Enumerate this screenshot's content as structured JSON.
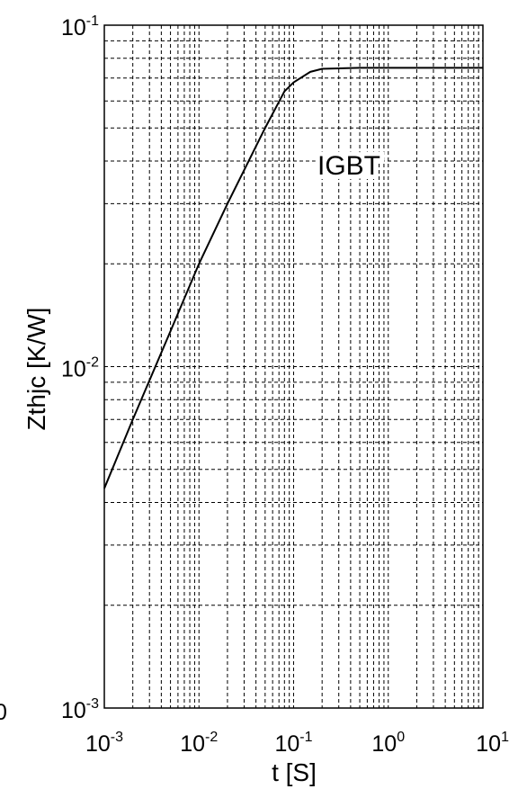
{
  "chart_data": {
    "type": "line",
    "title": "",
    "xlabel": "t [S]",
    "ylabel": "Zthjc [K/W]",
    "xscale": "log",
    "yscale": "log",
    "xlim": [
      0.001,
      10
    ],
    "ylim": [
      0.001,
      0.1
    ],
    "grid": true,
    "grid_style": "dashed",
    "x_tick_labels": [
      {
        "base": "10",
        "exp": "-3"
      },
      {
        "base": "10",
        "exp": "-2"
      },
      {
        "base": "10",
        "exp": "-1"
      },
      {
        "base": "10",
        "exp": "0"
      },
      {
        "base": "10",
        "exp": "1"
      }
    ],
    "y_tick_labels": [
      {
        "base": "10",
        "exp": "-3"
      },
      {
        "base": "10",
        "exp": "-2"
      },
      {
        "base": "10",
        "exp": "-1"
      }
    ],
    "annotation": "IGBT",
    "edge_fragment": "0",
    "series": [
      {
        "color": "#000000",
        "points": [
          [
            0.001,
            0.0044
          ],
          [
            0.002,
            0.007
          ],
          [
            0.005,
            0.0127
          ],
          [
            0.01,
            0.02
          ],
          [
            0.02,
            0.03
          ],
          [
            0.05,
            0.05
          ],
          [
            0.08,
            0.064
          ],
          [
            0.1,
            0.068
          ],
          [
            0.15,
            0.073
          ],
          [
            0.2,
            0.0745
          ],
          [
            0.5,
            0.075
          ],
          [
            1,
            0.075
          ],
          [
            10,
            0.075
          ]
        ]
      }
    ]
  }
}
